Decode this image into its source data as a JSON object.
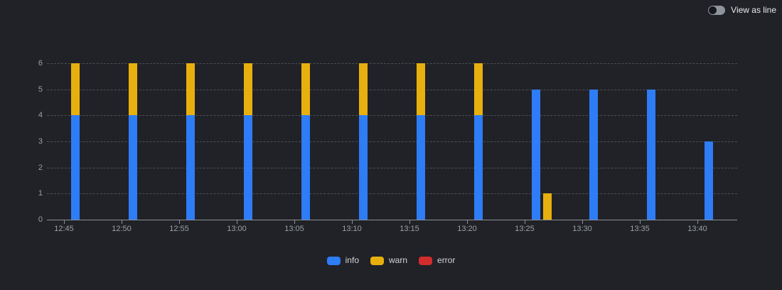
{
  "toggle": {
    "label": "View as line",
    "state": "off"
  },
  "colors": {
    "background": "#212227",
    "axis": "#8b9096",
    "grid": "#4b4f54",
    "tick_text": "#9aa0a5",
    "info": "#2e7cf6",
    "warn": "#e8b00e",
    "error": "#d22d2d"
  },
  "chart_data": {
    "type": "bar",
    "stacked": true,
    "title": "",
    "xlabel": "",
    "ylabel": "",
    "ylim": [
      0,
      6
    ],
    "y_ticks": [
      0,
      1,
      2,
      3,
      4,
      5,
      6
    ],
    "x_ticks": [
      "12:45",
      "12:50",
      "12:55",
      "13:00",
      "13:05",
      "13:10",
      "13:15",
      "13:20",
      "13:25",
      "13:30",
      "13:35",
      "13:40"
    ],
    "grid": "horizontal dashed",
    "legend_position": "bottom center",
    "series": [
      {
        "name": "info",
        "color": "#2e7cf6"
      },
      {
        "name": "warn",
        "color": "#e8b00e"
      },
      {
        "name": "error",
        "color": "#d22d2d"
      }
    ],
    "bars": [
      {
        "time": "12:46",
        "values": [
          4,
          2,
          0
        ]
      },
      {
        "time": "12:51",
        "values": [
          4,
          2,
          0
        ]
      },
      {
        "time": "12:56",
        "values": [
          4,
          2,
          0
        ]
      },
      {
        "time": "13:01",
        "values": [
          4,
          2,
          0
        ]
      },
      {
        "time": "13:06",
        "values": [
          4,
          2,
          0
        ]
      },
      {
        "time": "13:11",
        "values": [
          4,
          2,
          0
        ]
      },
      {
        "time": "13:16",
        "values": [
          4,
          2,
          0
        ]
      },
      {
        "time": "13:21",
        "values": [
          4,
          2,
          0
        ]
      },
      {
        "time": "13:26",
        "values": [
          5,
          0,
          0
        ]
      },
      {
        "time": "13:27",
        "values": [
          0,
          1,
          0
        ]
      },
      {
        "time": "13:31",
        "values": [
          5,
          0,
          0
        ]
      },
      {
        "time": "13:36",
        "values": [
          5,
          0,
          0
        ]
      },
      {
        "time": "13:41",
        "values": [
          3,
          0,
          0
        ]
      }
    ]
  }
}
